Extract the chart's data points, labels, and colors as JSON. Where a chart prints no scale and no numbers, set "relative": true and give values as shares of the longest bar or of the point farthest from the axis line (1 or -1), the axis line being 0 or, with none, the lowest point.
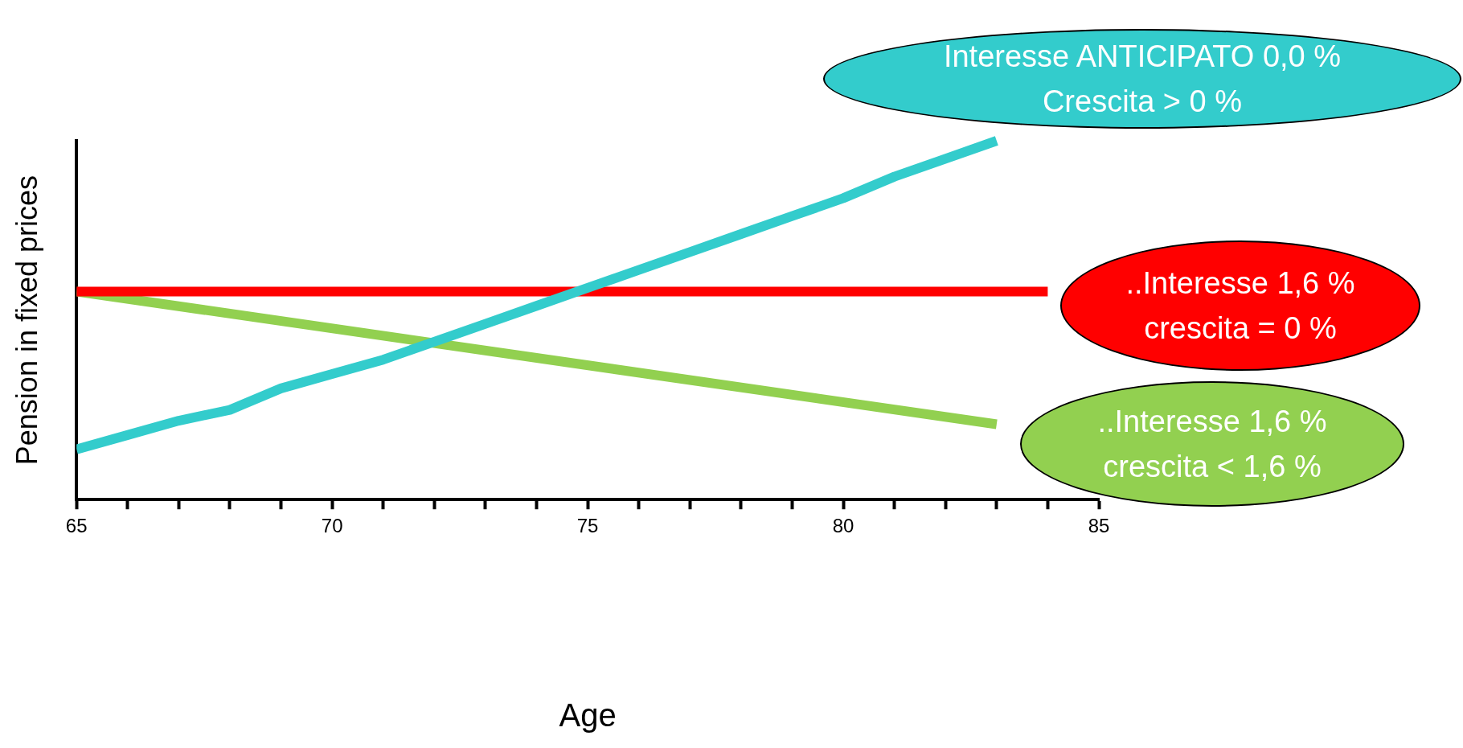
{
  "chart_data": {
    "type": "line",
    "relative": true,
    "xlabel": "Age",
    "ylabel": "Pension in fixed prices",
    "xlim": [
      65,
      85
    ],
    "xticks": [
      65,
      {
        "value": 66,
        "label": null
      },
      {
        "value": 67,
        "label": null
      },
      {
        "value": 68,
        "label": null
      },
      {
        "value": 69,
        "label": null
      },
      70,
      {
        "value": 71,
        "label": null
      },
      {
        "value": 72,
        "label": null
      },
      {
        "value": 73,
        "label": null
      },
      {
        "value": 74,
        "label": null
      },
      75,
      {
        "value": 76,
        "label": null
      },
      {
        "value": 77,
        "label": null
      },
      {
        "value": 78,
        "label": null
      },
      {
        "value": 79,
        "label": null
      },
      80,
      {
        "value": 81,
        "label": null
      },
      {
        "value": 82,
        "label": null
      },
      {
        "value": 83,
        "label": null
      },
      {
        "value": 84,
        "label": null
      },
      85
    ],
    "series": [
      {
        "color": "#33cccc",
        "x": [
          65,
          66,
          67,
          68,
          69,
          70,
          71,
          72,
          73,
          74,
          75,
          76,
          77,
          78,
          79,
          80,
          81,
          82,
          83
        ],
        "values": [
          0.14,
          0.18,
          0.22,
          0.25,
          0.31,
          0.35,
          0.39,
          0.44,
          0.49,
          0.54,
          0.59,
          0.64,
          0.69,
          0.74,
          0.79,
          0.84,
          0.9,
          0.95,
          1
        ]
      },
      {
        "color": "#ff0000",
        "x": [
          65,
          84
        ],
        "values": [
          0.58,
          0.58
        ]
      },
      {
        "color": "#92d050",
        "x": [
          65,
          83
        ],
        "values": [
          0.58,
          0.21
        ]
      }
    ],
    "annotations": [
      "Interesse ANTICIPATO 0,0 %\nCrescita > 0 %",
      "..Interesse 1,6 %\ncrescita = 0 %",
      "..Interesse 1,6 %\ncrescita < 1,6 %"
    ],
    "grid": false,
    "legend": false,
    "marker": "none",
    "line_style": "solid"
  }
}
